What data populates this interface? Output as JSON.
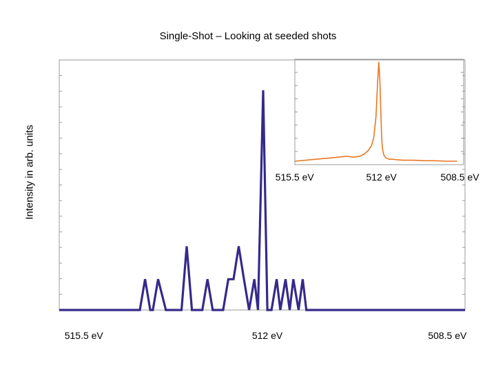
{
  "chart_data": [
    {
      "type": "line",
      "title": "Single-Shot – Looking at seeded shots",
      "ylabel": "Intensity in arb. units",
      "xlabel": "",
      "x_axis": "reversed",
      "xlim": [
        516,
        508.2
      ],
      "ylim": [
        0,
        1
      ],
      "tick_labels": [
        "515.5 eV",
        "512 eV",
        "508.5 eV"
      ],
      "tick_values": [
        515.5,
        512,
        508.5
      ],
      "grid": false,
      "series": [
        {
          "color": "#35298a",
          "x": [
            516.0,
            514.45,
            514.35,
            514.25,
            514.2,
            514.1,
            513.95,
            513.8,
            513.65,
            513.55,
            513.45,
            513.35,
            513.25,
            513.15,
            513.05,
            512.95,
            512.85,
            512.75,
            512.65,
            512.55,
            512.45,
            512.35,
            512.25,
            512.18,
            512.08,
            512.0,
            511.92,
            511.82,
            511.75,
            511.65,
            511.57,
            511.5,
            511.4,
            511.32,
            511.25,
            511.15,
            508.2
          ],
          "y": [
            0.0,
            0.0,
            0.14,
            0.0,
            0.0,
            0.14,
            0.0,
            0.0,
            0.0,
            0.29,
            0.0,
            0.0,
            0.0,
            0.14,
            0.0,
            0.0,
            0.0,
            0.14,
            0.14,
            0.29,
            0.14,
            0.0,
            0.14,
            0.0,
            1.0,
            0.0,
            0.0,
            0.14,
            0.0,
            0.14,
            0.0,
            0.14,
            0.0,
            0.14,
            0.0,
            0.0,
            0.0
          ]
        }
      ]
    },
    {
      "type": "line",
      "title": "",
      "x_axis": "reversed",
      "xlim": [
        516,
        508.2
      ],
      "ylim": [
        0,
        1
      ],
      "tick_labels": [
        "515.5 eV",
        "512 eV",
        "508.5 eV"
      ],
      "tick_values": [
        515.5,
        512,
        508.5
      ],
      "grid": false,
      "series": [
        {
          "color": "#e87722",
          "x": [
            516.0,
            515.5,
            515.0,
            514.5,
            514.0,
            513.6,
            513.3,
            513.0,
            512.8,
            512.6,
            512.45,
            512.35,
            512.25,
            512.18,
            512.12,
            512.07,
            512.02,
            511.98,
            511.93,
            511.88,
            511.82,
            511.75,
            511.65,
            511.5,
            511.3,
            511.0,
            510.5,
            510.0,
            509.5,
            509.0,
            508.5
          ],
          "y": [
            0.0,
            0.01,
            0.02,
            0.03,
            0.04,
            0.05,
            0.04,
            0.05,
            0.07,
            0.11,
            0.16,
            0.24,
            0.45,
            0.78,
            1.0,
            0.82,
            0.45,
            0.2,
            0.1,
            0.06,
            0.04,
            0.03,
            0.02,
            0.02,
            0.015,
            0.01,
            0.01,
            0.005,
            0.005,
            0.0,
            0.0
          ]
        }
      ]
    }
  ]
}
